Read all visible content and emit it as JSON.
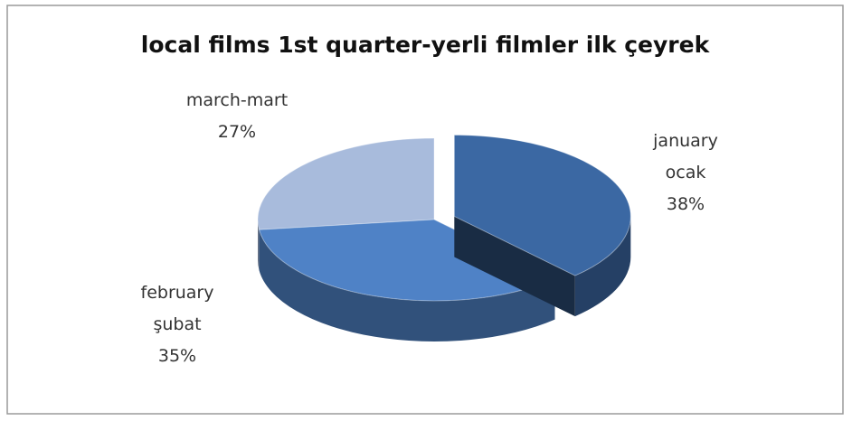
{
  "chart_data": {
    "type": "pie3d",
    "title": "local films 1st quarter-yerli filmler ilk çeyrek",
    "categories": [
      "january ocak",
      "february şubat",
      "march-mart"
    ],
    "values": [
      38,
      35,
      27
    ],
    "value_labels": [
      "38%",
      "35%",
      "27%"
    ],
    "colors": [
      "#3b68a3",
      "#4f82c6",
      "#a8bbdc"
    ]
  }
}
